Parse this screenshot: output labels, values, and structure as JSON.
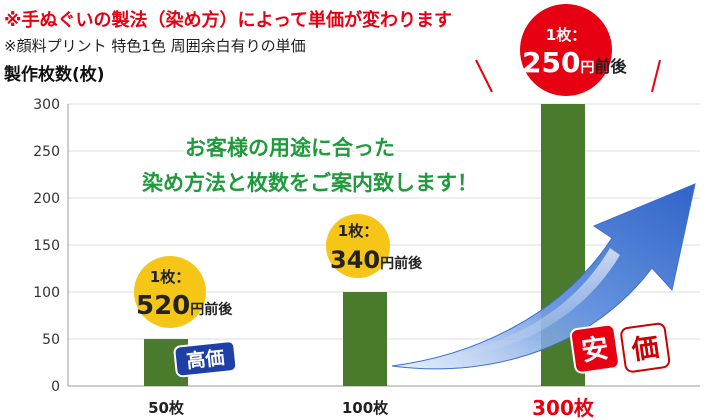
{
  "notes": {
    "line1": "※手ぬぐいの製法（染め方）によって単価が変わります",
    "line2": "※顔料プリント 特色1色 周囲余白有りの単価"
  },
  "chart_data": {
    "type": "bar",
    "ylabel": "製作枚数(枚)",
    "xlabel": "",
    "ylim": [
      0,
      300
    ],
    "yticks": [
      0,
      50,
      100,
      150,
      200,
      250,
      300
    ],
    "grid": true,
    "categories": [
      "50枚",
      "100枚",
      "300枚"
    ],
    "values": [
      50,
      100,
      300
    ],
    "bar_color": "#4a7b2c",
    "highlight_label_color": "#e60012",
    "price_labels": [
      {
        "prefix": "1枚：",
        "price": "520",
        "yen": "円",
        "suffix": "前後"
      },
      {
        "prefix": "1枚：",
        "price": "340",
        "yen": "円",
        "suffix": "前後"
      },
      {
        "prefix": "1枚：",
        "price": "250",
        "yen": "円",
        "suffix": "前後"
      }
    ],
    "annotation_lines": [
      "お客様の用途に合った",
      "染め方法と枚数をご案内致します！"
    ],
    "badges": {
      "high": "高価",
      "low": "安価"
    }
  }
}
